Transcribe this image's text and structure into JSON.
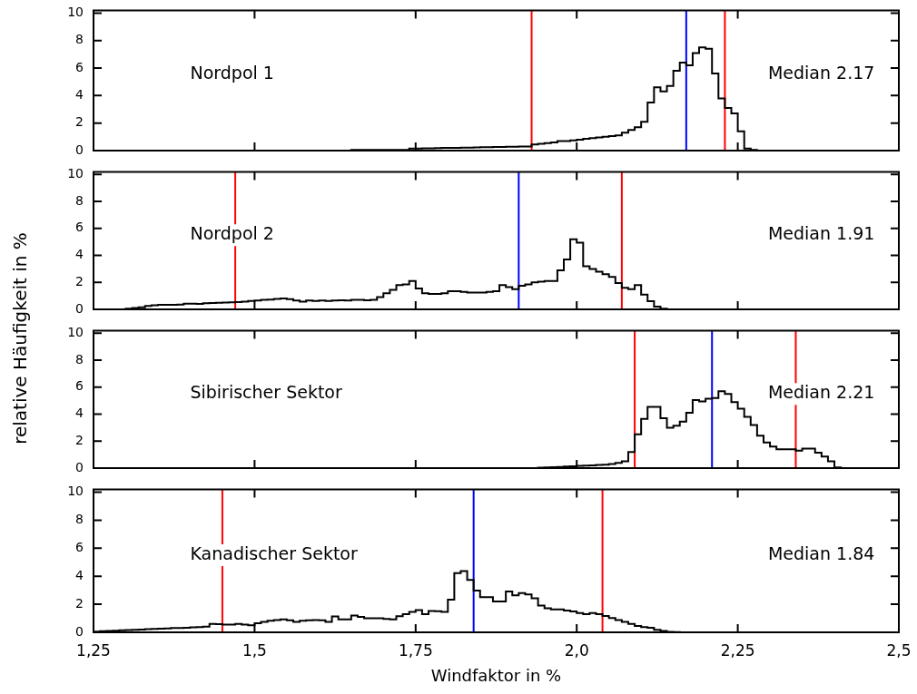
{
  "chart_data": [
    {
      "type": "histogram",
      "color": "#000000",
      "tick_labels": "y",
      "bins": [
        1.65,
        1.66,
        1.67,
        1.68,
        1.69,
        1.7,
        1.71,
        1.72,
        1.73,
        1.74,
        1.75,
        1.76,
        1.77,
        1.78,
        1.79,
        1.8,
        1.81,
        1.82,
        1.83,
        1.84,
        1.85,
        1.86,
        1.87,
        1.88,
        1.89,
        1.9,
        1.91,
        1.92,
        1.93,
        1.94,
        1.95,
        1.96,
        1.97,
        1.98,
        1.99,
        2.0,
        2.01,
        2.02,
        2.03,
        2.04,
        2.05,
        2.06,
        2.07,
        2.08,
        2.09,
        2.1,
        2.11,
        2.12,
        2.13,
        2.14,
        2.15,
        2.16,
        2.17,
        2.18,
        2.19,
        2.2,
        2.21,
        2.22,
        2.23,
        2.24,
        2.25,
        2.26,
        2.27,
        2.28
      ],
      "values": [
        0.05,
        0.05,
        0.05,
        0.05,
        0.05,
        0.05,
        0.05,
        0.05,
        0.05,
        0.15,
        0.15,
        0.16,
        0.17,
        0.18,
        0.19,
        0.2,
        0.2,
        0.21,
        0.22,
        0.23,
        0.24,
        0.25,
        0.26,
        0.27,
        0.28,
        0.28,
        0.29,
        0.3,
        0.45,
        0.5,
        0.55,
        0.6,
        0.7,
        0.7,
        0.75,
        0.8,
        0.85,
        0.9,
        0.95,
        1.0,
        1.05,
        1.1,
        1.3,
        1.5,
        1.7,
        2.1,
        3.5,
        4.6,
        4.3,
        4.7,
        5.8,
        6.4,
        6.2,
        7.1,
        7.5,
        7.4,
        5.6,
        3.8,
        3.1,
        2.7,
        1.4,
        0.15,
        0.05
      ],
      "xlim": [
        1.25,
        2.5
      ],
      "ylim": [
        0,
        10.2
      ],
      "xticks": [
        {
          "value": 1.25,
          "label": null
        },
        {
          "value": 1.5,
          "label": null
        },
        {
          "value": 1.75,
          "label": null
        },
        {
          "value": 2.0,
          "label": null
        },
        {
          "value": 2.25,
          "label": null
        },
        {
          "value": 2.5,
          "label": null
        }
      ],
      "yticks": [
        0,
        2,
        4,
        6,
        8,
        10
      ],
      "ref_lines": [
        {
          "axis": "x",
          "value": 1.93,
          "color": "#ff0000"
        },
        {
          "axis": "x",
          "value": 2.17,
          "color": "#0000ff"
        },
        {
          "axis": "x",
          "value": 2.23,
          "color": "#ff0000"
        }
      ],
      "annotations": [
        "Nordpol 1",
        "Median 2.17"
      ]
    },
    {
      "type": "histogram",
      "color": "#000000",
      "tick_labels": "y",
      "bins": [
        1.3,
        1.31,
        1.32,
        1.33,
        1.34,
        1.35,
        1.36,
        1.37,
        1.38,
        1.39,
        1.4,
        1.41,
        1.42,
        1.43,
        1.44,
        1.45,
        1.46,
        1.47,
        1.48,
        1.49,
        1.5,
        1.51,
        1.52,
        1.53,
        1.54,
        1.55,
        1.56,
        1.57,
        1.58,
        1.59,
        1.6,
        1.61,
        1.62,
        1.63,
        1.64,
        1.65,
        1.66,
        1.67,
        1.68,
        1.69,
        1.7,
        1.71,
        1.72,
        1.73,
        1.74,
        1.75,
        1.76,
        1.77,
        1.78,
        1.79,
        1.8,
        1.81,
        1.82,
        1.83,
        1.84,
        1.85,
        1.86,
        1.87,
        1.88,
        1.89,
        1.9,
        1.91,
        1.92,
        1.93,
        1.94,
        1.95,
        1.96,
        1.97,
        1.98,
        1.99,
        2.0,
        2.01,
        2.02,
        2.03,
        2.04,
        2.05,
        2.06,
        2.07,
        2.08,
        2.09,
        2.1,
        2.11,
        2.12,
        2.13,
        2.14
      ],
      "values": [
        0.05,
        0.1,
        0.15,
        0.25,
        0.3,
        0.34,
        0.34,
        0.34,
        0.35,
        0.42,
        0.42,
        0.4,
        0.45,
        0.47,
        0.48,
        0.5,
        0.52,
        0.53,
        0.58,
        0.62,
        0.65,
        0.7,
        0.72,
        0.78,
        0.8,
        0.75,
        0.65,
        0.57,
        0.65,
        0.63,
        0.65,
        0.63,
        0.65,
        0.67,
        0.65,
        0.7,
        0.7,
        0.68,
        0.7,
        0.9,
        1.2,
        1.45,
        1.8,
        1.85,
        2.1,
        1.55,
        1.2,
        1.15,
        1.15,
        1.2,
        1.35,
        1.35,
        1.3,
        1.25,
        1.25,
        1.25,
        1.3,
        1.35,
        1.8,
        1.65,
        1.5,
        1.75,
        1.85,
        2.0,
        2.05,
        2.1,
        2.1,
        2.9,
        3.7,
        5.2,
        4.95,
        3.2,
        3.0,
        2.8,
        2.6,
        2.4,
        1.95,
        1.6,
        1.5,
        1.8,
        1.1,
        0.6,
        0.2,
        0.05
      ],
      "xlim": [
        1.25,
        2.5
      ],
      "ylim": [
        0,
        10.2
      ],
      "xticks": [
        {
          "value": 1.25,
          "label": null
        },
        {
          "value": 1.5,
          "label": null
        },
        {
          "value": 1.75,
          "label": null
        },
        {
          "value": 2.0,
          "label": null
        },
        {
          "value": 2.25,
          "label": null
        },
        {
          "value": 2.5,
          "label": null
        }
      ],
      "yticks": [
        0,
        2,
        4,
        6,
        8,
        10
      ],
      "ref_lines": [
        {
          "axis": "x",
          "value": 1.47,
          "color": "#ff0000"
        },
        {
          "axis": "x",
          "value": 1.91,
          "color": "#0000ff"
        },
        {
          "axis": "x",
          "value": 2.07,
          "color": "#ff0000"
        }
      ],
      "annotations": [
        "Nordpol 2",
        "Median 1.91"
      ]
    },
    {
      "type": "histogram",
      "color": "#000000",
      "tick_labels": "y",
      "ylabel": "relative Häufigkeit in %",
      "bins": [
        1.94,
        1.95,
        1.96,
        1.97,
        1.98,
        1.99,
        2.0,
        2.01,
        2.02,
        2.03,
        2.04,
        2.05,
        2.06,
        2.07,
        2.08,
        2.09,
        2.1,
        2.11,
        2.12,
        2.13,
        2.14,
        2.15,
        2.16,
        2.17,
        2.18,
        2.19,
        2.2,
        2.21,
        2.22,
        2.23,
        2.24,
        2.25,
        2.26,
        2.27,
        2.28,
        2.29,
        2.3,
        2.31,
        2.32,
        2.33,
        2.34,
        2.35,
        2.36,
        2.37,
        2.38,
        2.39,
        2.4,
        2.41
      ],
      "values": [
        0.03,
        0.05,
        0.07,
        0.09,
        0.11,
        0.13,
        0.17,
        0.19,
        0.21,
        0.23,
        0.25,
        0.3,
        0.38,
        0.5,
        1.2,
        2.5,
        3.65,
        4.55,
        4.55,
        3.7,
        3.0,
        3.15,
        3.45,
        4.1,
        5.05,
        4.95,
        5.15,
        5.2,
        5.7,
        5.5,
        4.9,
        4.4,
        3.8,
        3.2,
        2.4,
        1.9,
        1.6,
        1.4,
        1.4,
        1.4,
        1.3,
        1.45,
        1.45,
        1.15,
        0.85,
        0.5,
        0.05
      ],
      "xlim": [
        1.25,
        2.5
      ],
      "ylim": [
        0,
        10.2
      ],
      "xticks": [
        {
          "value": 1.25,
          "label": null
        },
        {
          "value": 1.5,
          "label": null
        },
        {
          "value": 1.75,
          "label": null
        },
        {
          "value": 2.0,
          "label": null
        },
        {
          "value": 2.25,
          "label": null
        },
        {
          "value": 2.5,
          "label": null
        }
      ],
      "yticks": [
        0,
        2,
        4,
        6,
        8,
        10
      ],
      "ref_lines": [
        {
          "axis": "x",
          "value": 2.09,
          "color": "#ff0000"
        },
        {
          "axis": "x",
          "value": 2.21,
          "color": "#0000ff"
        },
        {
          "axis": "x",
          "value": 2.34,
          "color": "#ff0000"
        }
      ],
      "annotations": [
        "Sibirischer Sektor",
        "Median 2.21"
      ]
    },
    {
      "type": "histogram",
      "color": "#000000",
      "xlabel": "Windfaktor in %",
      "bins": [
        1.25,
        1.26,
        1.27,
        1.28,
        1.29,
        1.3,
        1.31,
        1.32,
        1.33,
        1.34,
        1.35,
        1.36,
        1.37,
        1.38,
        1.39,
        1.4,
        1.41,
        1.42,
        1.43,
        1.44,
        1.45,
        1.46,
        1.47,
        1.48,
        1.49,
        1.5,
        1.51,
        1.52,
        1.53,
        1.54,
        1.55,
        1.56,
        1.57,
        1.58,
        1.59,
        1.6,
        1.61,
        1.62,
        1.63,
        1.64,
        1.65,
        1.66,
        1.67,
        1.68,
        1.69,
        1.7,
        1.71,
        1.72,
        1.73,
        1.74,
        1.75,
        1.76,
        1.77,
        1.78,
        1.79,
        1.8,
        1.81,
        1.82,
        1.83,
        1.84,
        1.85,
        1.86,
        1.87,
        1.88,
        1.89,
        1.9,
        1.91,
        1.92,
        1.93,
        1.94,
        1.95,
        1.96,
        1.97,
        1.98,
        1.99,
        2.0,
        2.01,
        2.02,
        2.03,
        2.04,
        2.05,
        2.06,
        2.07,
        2.08,
        2.09,
        2.1,
        2.11,
        2.12,
        2.13,
        2.14,
        2.15,
        2.16
      ],
      "values": [
        0.05,
        0.08,
        0.1,
        0.12,
        0.14,
        0.16,
        0.18,
        0.2,
        0.22,
        0.24,
        0.26,
        0.28,
        0.3,
        0.3,
        0.32,
        0.35,
        0.38,
        0.4,
        0.6,
        0.58,
        0.55,
        0.55,
        0.6,
        0.55,
        0.5,
        0.65,
        0.74,
        0.82,
        0.88,
        0.93,
        0.85,
        0.74,
        0.82,
        0.85,
        0.88,
        0.85,
        0.74,
        1.13,
        0.93,
        0.93,
        1.2,
        1.1,
        1.0,
        1.0,
        1.0,
        0.95,
        0.93,
        1.15,
        1.3,
        1.45,
        1.58,
        1.3,
        1.52,
        1.5,
        1.45,
        2.33,
        4.23,
        4.37,
        3.73,
        2.97,
        2.5,
        2.5,
        2.2,
        2.2,
        2.92,
        2.64,
        2.8,
        2.7,
        2.42,
        1.91,
        1.72,
        1.63,
        1.63,
        1.55,
        1.49,
        1.38,
        1.3,
        1.38,
        1.3,
        1.16,
        1.02,
        0.88,
        0.74,
        0.6,
        0.46,
        0.38,
        0.32,
        0.18,
        0.1,
        0.04,
        0.02
      ],
      "xlim": [
        1.25,
        2.5
      ],
      "ylim": [
        0,
        10.2
      ],
      "xticks": [
        {
          "value": 1.25,
          "label": "1,25"
        },
        {
          "value": 1.5,
          "label": "1,5"
        },
        {
          "value": 1.75,
          "label": "1,75"
        },
        {
          "value": 2.0,
          "label": "2,0"
        },
        {
          "value": 2.25,
          "label": "2,25"
        },
        {
          "value": 2.5,
          "label": "2,5"
        }
      ],
      "yticks": [
        0,
        2,
        4,
        6,
        8,
        10
      ],
      "ref_lines": [
        {
          "axis": "x",
          "value": 1.45,
          "color": "#ff0000"
        },
        {
          "axis": "x",
          "value": 1.84,
          "color": "#0000ff"
        },
        {
          "axis": "x",
          "value": 2.04,
          "color": "#ff0000"
        }
      ],
      "annotations": [
        "Kanadischer Sektor",
        "Median 1.84"
      ]
    }
  ]
}
